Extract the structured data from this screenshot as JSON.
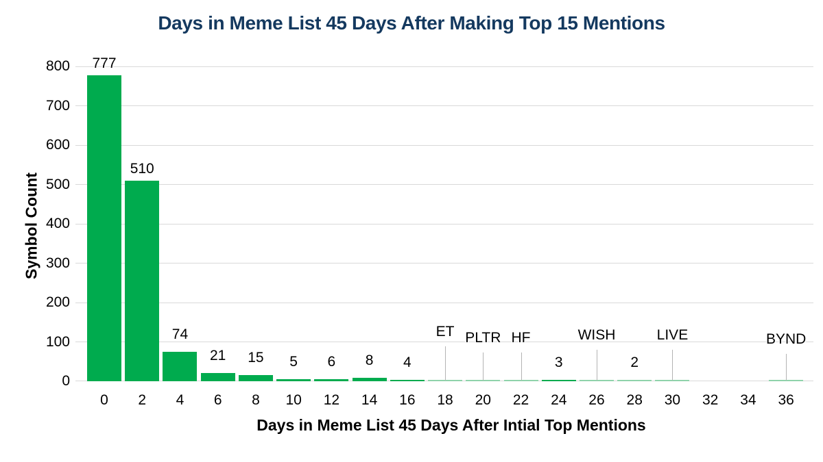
{
  "colors": {
    "background": "#ffffff",
    "title": "#14395f",
    "text": "#000000",
    "bar": "#00ab4e",
    "bar_faint": "#8fd2ab",
    "gridline": "#d9d9d9",
    "leader_line": "#b3b3b3"
  },
  "chart_data": {
    "type": "bar",
    "title": "Days in Meme List 45 Days After Making Top 15 Mentions",
    "xlabel": "Days in Meme List 45 Days After Intial Top Mentions",
    "ylabel": "Symbol Count",
    "ylim": [
      0,
      800
    ],
    "yticks": [
      0,
      100,
      200,
      300,
      400,
      500,
      600,
      700,
      800
    ],
    "grid": "horizontal",
    "legend": "none",
    "categories": [
      "0",
      "2",
      "4",
      "6",
      "8",
      "10",
      "12",
      "14",
      "16",
      "18",
      "20",
      "22",
      "24",
      "26",
      "28",
      "30",
      "32",
      "34",
      "36"
    ],
    "values": [
      777,
      510,
      74,
      21,
      15,
      5,
      6,
      8,
      4,
      1,
      1,
      1,
      3,
      1,
      2,
      1,
      0,
      0,
      1
    ],
    "bars": [
      {
        "category": "0",
        "value": 777,
        "label": "777",
        "label_kind": "number"
      },
      {
        "category": "2",
        "value": 510,
        "label": "510",
        "label_kind": "number"
      },
      {
        "category": "4",
        "value": 74,
        "label": "74",
        "label_kind": "number"
      },
      {
        "category": "6",
        "value": 21,
        "label": "21",
        "label_kind": "number"
      },
      {
        "category": "8",
        "value": 15,
        "label": "15",
        "label_kind": "number"
      },
      {
        "category": "10",
        "value": 5,
        "label": "5",
        "label_kind": "number"
      },
      {
        "category": "12",
        "value": 6,
        "label": "6",
        "label_kind": "number"
      },
      {
        "category": "14",
        "value": 8,
        "label": "8",
        "label_kind": "number"
      },
      {
        "category": "16",
        "value": 4,
        "label": "4",
        "label_kind": "number"
      },
      {
        "category": "18",
        "value": 1,
        "label": "ET",
        "label_kind": "callout",
        "label_lift": 61
      },
      {
        "category": "20",
        "value": 1,
        "label": "PLTR",
        "label_kind": "callout",
        "label_lift": 52
      },
      {
        "category": "22",
        "value": 1,
        "label": "HF",
        "label_kind": "callout",
        "label_lift": 52
      },
      {
        "category": "24",
        "value": 3,
        "label": "3",
        "label_kind": "number"
      },
      {
        "category": "26",
        "value": 1,
        "label": "WISH",
        "label_kind": "callout",
        "label_lift": 56
      },
      {
        "category": "28",
        "value": 2,
        "label": "2",
        "label_kind": "number"
      },
      {
        "category": "30",
        "value": 1,
        "label": "LIVE",
        "label_kind": "callout",
        "label_lift": 56
      },
      {
        "category": "32",
        "value": 0,
        "label": "",
        "label_kind": "none"
      },
      {
        "category": "34",
        "value": 0,
        "label": "",
        "label_kind": "none"
      },
      {
        "category": "36",
        "value": 1,
        "label": "BYND",
        "label_kind": "callout",
        "label_lift": 50
      }
    ]
  }
}
